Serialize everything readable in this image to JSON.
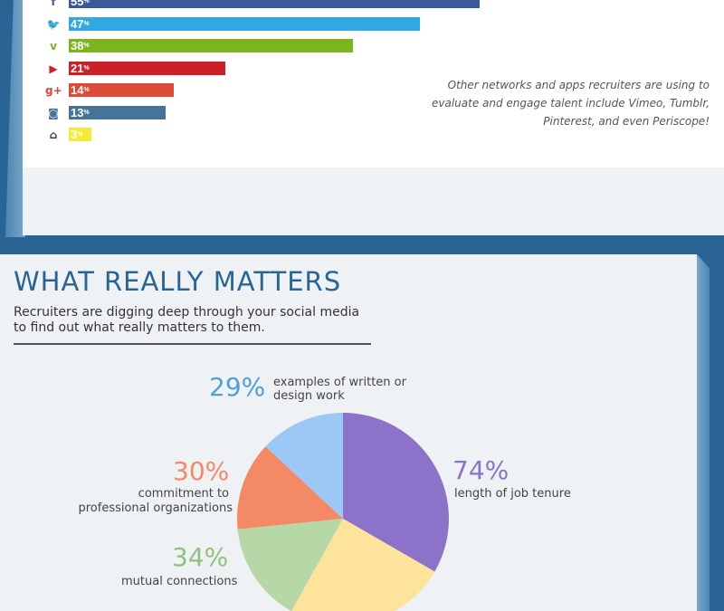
{
  "top_chart": {
    "bars": [
      {
        "icon": "facebook-icon",
        "glyph": "f",
        "value": 55,
        "color": "#3b5998",
        "icon_color": "#3b5998"
      },
      {
        "icon": "twitter-icon",
        "glyph": "🐦",
        "value": 47,
        "color": "#2ea9e1",
        "icon_color": "#2ea9e1"
      },
      {
        "icon": "vine-icon",
        "glyph": "v",
        "value": 38,
        "color": "#7ab51d",
        "icon_color": "#7ab51d"
      },
      {
        "icon": "youtube-icon",
        "glyph": "▶",
        "value": 21,
        "color": "#cc2028",
        "icon_color": "#cc2028"
      },
      {
        "icon": "google-plus-icon",
        "glyph": "g+",
        "value": 14,
        "color": "#dc4a38",
        "icon_color": "#dc4a38"
      },
      {
        "icon": "instagram-icon",
        "glyph": "◙",
        "value": 13,
        "color": "#46739a",
        "icon_color": "#46739a"
      },
      {
        "icon": "snapchat-icon",
        "glyph": "⌂",
        "value": 3,
        "color": "#f2ea35",
        "icon_color": "#333333"
      }
    ],
    "note": "Other networks and apps recruiters are using to evaluate and engage talent include Vimeo, Tumblr, Pinterest, and even Periscope!"
  },
  "section": {
    "title": "WHAT REALLY MATTERS",
    "subtitle": "Recruiters are digging deep through your social media to find out what really matters to them."
  },
  "chart_data": {
    "type": "pie",
    "slices": [
      {
        "label": "length of job tenure",
        "value": 74,
        "pct_text": "74%",
        "color": "#8c72c8"
      },
      {
        "label": "",
        "value": 55,
        "pct_text": "",
        "color": "#fde39c"
      },
      {
        "label": "mutual connections",
        "value": 34,
        "pct_text": "34%",
        "color": "#b6d8a7"
      },
      {
        "label": "commitment to professional organizations",
        "value": 30,
        "pct_text": "30%",
        "color": "#f48966"
      },
      {
        "label": "examples of written or design work",
        "value": 29,
        "pct_text": "29%",
        "color": "#9bc8f4"
      }
    ]
  },
  "pie_labels": {
    "l74": {
      "pct": "74%",
      "line1": "length of job tenure",
      "color": "#8c72c8"
    },
    "l29": {
      "pct": "29%",
      "line1": "examples of written or",
      "line2": "design work",
      "color": "#4f9fd8"
    },
    "l30": {
      "pct": "30%",
      "line1": "commitment to",
      "line2": "professional organizations",
      "color": "#f48966"
    },
    "l34": {
      "pct": "34%",
      "line1": "mutual connections",
      "color": "#8fc27d"
    }
  }
}
